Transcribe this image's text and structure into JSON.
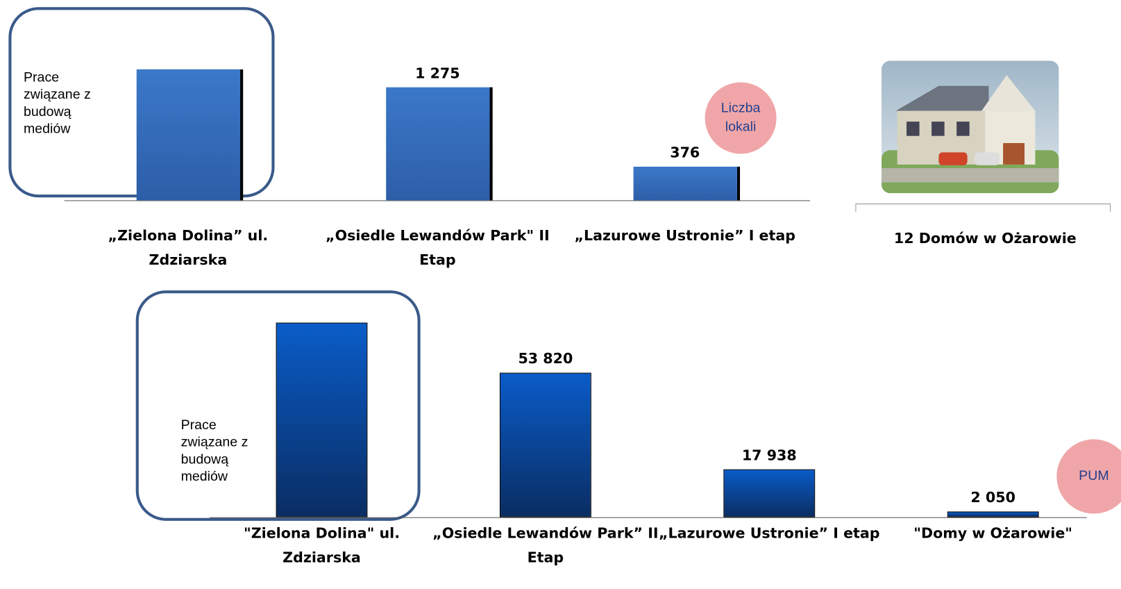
{
  "chart_data": [
    {
      "type": "bar",
      "categories": [
        "„Zielona Dolina” ul. Zdziarska",
        "„Osiedle Lewandów Park\" II Etap",
        "„Lazurowe Ustronie” I etap"
      ],
      "values": [
        1476,
        1275,
        376
      ],
      "value_labels": [
        null,
        "1 275",
        "376"
      ],
      "ylim": [
        0,
        1600
      ],
      "color": "#3b78c9",
      "annotation": "Prace związane z budową mediów",
      "badge": "Liczba lokali",
      "side_caption": "12 Domów w Ożarowie"
    },
    {
      "type": "bar",
      "categories": [
        "\"Zielona Dolina\" ul. Zdziarska",
        "„Osiedle Lewandów Park” II Etap",
        "„Lazurowe Ustronie” I etap",
        "\"Domy w Ożarowie\""
      ],
      "values": [
        72470,
        53820,
        17938,
        2050
      ],
      "value_labels": [
        null,
        "53 820",
        "17 938",
        "2 050"
      ],
      "ylim": [
        0,
        80000
      ],
      "color": "#0a5cc9",
      "annotation": "Prace związane z budową mediów",
      "badge": "PUM"
    }
  ]
}
